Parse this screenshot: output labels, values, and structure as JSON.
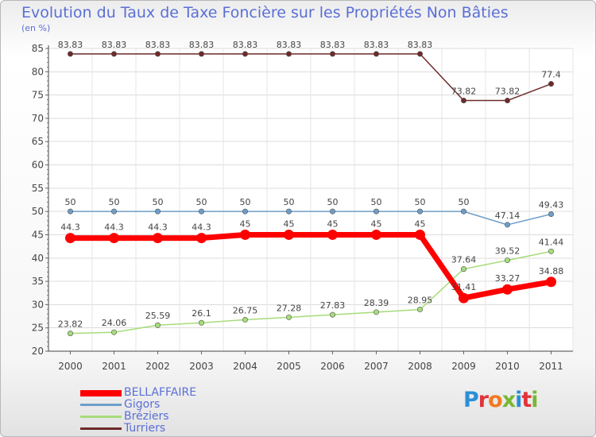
{
  "title": "Evolution du Taux de Taxe Foncière sur les Propriétés Non Bâties",
  "unit_label": "(en %)",
  "logo_text": "Proxiti",
  "chart_data": {
    "type": "line",
    "categories": [
      "2000",
      "2001",
      "2002",
      "2003",
      "2004",
      "2005",
      "2006",
      "2007",
      "2008",
      "2009",
      "2010",
      "2011"
    ],
    "ylim": [
      20,
      85
    ],
    "yticks": [
      20,
      25,
      30,
      35,
      40,
      45,
      50,
      55,
      60,
      65,
      70,
      75,
      80,
      85
    ],
    "series": [
      {
        "name": "Turriers",
        "color": "#6e2a2a",
        "width": 1.5,
        "values": [
          83.83,
          83.83,
          83.83,
          83.83,
          83.83,
          83.83,
          83.83,
          83.83,
          83.83,
          73.82,
          73.82,
          77.4
        ],
        "labels": [
          "83.83",
          "83.83",
          "83.83",
          "83.83",
          "83.83",
          "83.83",
          "83.83",
          "83.83",
          "83.83",
          "73.82",
          "73.82",
          "77.4"
        ],
        "label_pos": [
          "above",
          "above",
          "above",
          "above",
          "above",
          "above",
          "above",
          "above",
          "above",
          "above",
          "above",
          "above"
        ]
      },
      {
        "name": "Gigors",
        "color": "#6e9ec8",
        "width": 1.5,
        "values": [
          50,
          50,
          50,
          50,
          50,
          50,
          50,
          50,
          50,
          50,
          47.14,
          49.43
        ],
        "labels": [
          "50",
          "50",
          "50",
          "50",
          "50",
          "50",
          "50",
          "50",
          "50",
          "50",
          "47.14",
          "49.43"
        ],
        "label_pos": [
          "above",
          "above",
          "above",
          "above",
          "above",
          "above",
          "above",
          "above",
          "above",
          "above",
          "above",
          "above"
        ]
      },
      {
        "name": "Bréziers",
        "color": "#a6dc7a",
        "width": 1.5,
        "values": [
          23.82,
          24.06,
          25.59,
          26.1,
          26.75,
          27.28,
          27.83,
          28.39,
          28.95,
          37.64,
          39.52,
          41.44
        ],
        "labels": [
          "23.82",
          "24.06",
          "25.59",
          "26.1",
          "26.75",
          "27.28",
          "27.83",
          "28.39",
          "28.95",
          "37.64",
          "39.52",
          "41.44"
        ],
        "label_pos": [
          "above",
          "above",
          "above",
          "above",
          "above",
          "above",
          "above",
          "above",
          "above",
          "above",
          "above",
          "above"
        ]
      },
      {
        "name": "BELLAFFAIRE",
        "color": "#ff0000",
        "width": 7,
        "values": [
          44.3,
          44.3,
          44.3,
          44.3,
          45,
          45,
          45,
          45,
          45,
          31.41,
          33.27,
          34.88
        ],
        "labels": [
          "44.3",
          "44.3",
          "44.3",
          "44.3",
          "45",
          "45",
          "45",
          "45",
          "45",
          "31.41",
          "33.27",
          "34.88"
        ],
        "label_pos": [
          "above",
          "above",
          "above",
          "above",
          "above",
          "above",
          "above",
          "above",
          "above",
          "above",
          "above",
          "above"
        ]
      }
    ],
    "legend": [
      {
        "name": "BELLAFFAIRE",
        "color": "#ff0000",
        "thickness": "thick"
      },
      {
        "name": "Gigors",
        "color": "#6e9ec8",
        "thickness": "thin"
      },
      {
        "name": "Bréziers",
        "color": "#a6dc7a",
        "thickness": "thin"
      },
      {
        "name": "Turriers",
        "color": "#6e2a2a",
        "thickness": "thin"
      }
    ]
  }
}
